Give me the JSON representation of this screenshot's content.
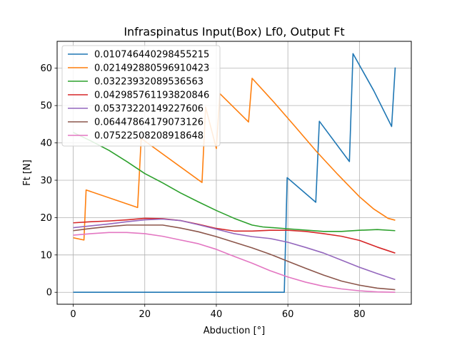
{
  "chart_data": {
    "type": "line",
    "title": "Infraspinatus Input(Box) Lf0, Output Ft",
    "xlabel": "Abduction [°]",
    "ylabel": "Ft [N]",
    "xlim": [
      -4.5,
      94.5
    ],
    "ylim": [
      -3.2,
      67.2
    ],
    "xticks": [
      0,
      20,
      40,
      60,
      80
    ],
    "yticks": [
      0,
      10,
      20,
      30,
      40,
      50,
      60
    ],
    "grid": true,
    "legend_position": "top-left",
    "series": [
      {
        "name": "0.010746440298455215",
        "color": "#1f77b4",
        "x": [
          0,
          20,
          40,
          59,
          59.8,
          67.8,
          68.8,
          77.2,
          78.2,
          84,
          89,
          90
        ],
        "y": [
          0,
          0,
          0,
          0,
          30.7,
          24.1,
          45.8,
          35,
          63.9,
          54,
          44.4,
          60.2
        ]
      },
      {
        "name": "0.021492880596910423",
        "color": "#ff7f0e",
        "x": [
          0,
          3,
          3.6,
          18,
          19,
          36,
          37,
          40,
          41,
          49,
          50,
          56,
          62,
          68,
          74,
          80,
          84,
          88,
          90
        ],
        "y": [
          14.6,
          14,
          27.4,
          22.7,
          41.2,
          29.4,
          49.6,
          38.5,
          53.2,
          45.6,
          57.3,
          51,
          44.4,
          37.7,
          31.5,
          25.6,
          22.3,
          19.8,
          19.3
        ]
      },
      {
        "name": "0.03223932089536563",
        "color": "#2ca02c",
        "x": [
          0,
          5,
          10,
          15,
          20,
          25,
          30,
          35,
          40,
          45,
          50,
          53,
          60,
          70,
          75,
          80,
          85,
          90
        ],
        "y": [
          42.8,
          40.5,
          38,
          35,
          31.8,
          29.3,
          26.6,
          24.2,
          21.9,
          19.8,
          18,
          17.5,
          17,
          16.3,
          16.3,
          16.6,
          16.8,
          16.5
        ]
      },
      {
        "name": "0.042985761193820846",
        "color": "#d62728",
        "x": [
          0,
          5,
          10,
          15,
          20,
          25,
          30,
          35,
          40,
          45,
          50,
          55,
          60,
          65,
          70,
          75,
          80,
          85,
          90
        ],
        "y": [
          18.6,
          18.9,
          19.1,
          19.4,
          19.8,
          19.7,
          19.2,
          18.2,
          17.1,
          16.4,
          16.4,
          16.6,
          16.6,
          16.3,
          15.7,
          15,
          13.9,
          12.1,
          10.5
        ]
      },
      {
        "name": "0.05373220149227606",
        "color": "#9467bd",
        "x": [
          0,
          5,
          10,
          15,
          20,
          25,
          30,
          35,
          40,
          45,
          50,
          55,
          60,
          65,
          70,
          75,
          80,
          85,
          90
        ],
        "y": [
          17.3,
          17.8,
          18.3,
          18.9,
          19.4,
          19.6,
          19.2,
          18.1,
          16.9,
          15.7,
          14.9,
          14.4,
          13.4,
          12,
          10.5,
          8.6,
          6.7,
          5,
          3.4
        ]
      },
      {
        "name": "0.06447864179073126",
        "color": "#8c564b",
        "x": [
          0,
          5,
          10,
          15,
          20,
          25,
          30,
          35,
          40,
          45,
          50,
          55,
          60,
          65,
          70,
          75,
          80,
          85,
          90
        ],
        "y": [
          16.5,
          17.1,
          17.6,
          18,
          18,
          18,
          17.2,
          16.2,
          14.9,
          13.4,
          11.9,
          10.2,
          8.3,
          6.4,
          4.6,
          3,
          1.9,
          1.1,
          0.7
        ]
      },
      {
        "name": "0.07522508208918648",
        "color": "#e377c2",
        "x": [
          0,
          5,
          10,
          15,
          20,
          25,
          30,
          35,
          40,
          45,
          50,
          55,
          60,
          65,
          70,
          75,
          80,
          85,
          90
        ],
        "y": [
          15.3,
          15.7,
          16,
          16,
          15.7,
          15,
          14,
          13,
          11.5,
          9.6,
          7.8,
          5.8,
          4.1,
          2.7,
          1.6,
          0.9,
          0.4,
          0.1,
          0
        ]
      }
    ]
  }
}
